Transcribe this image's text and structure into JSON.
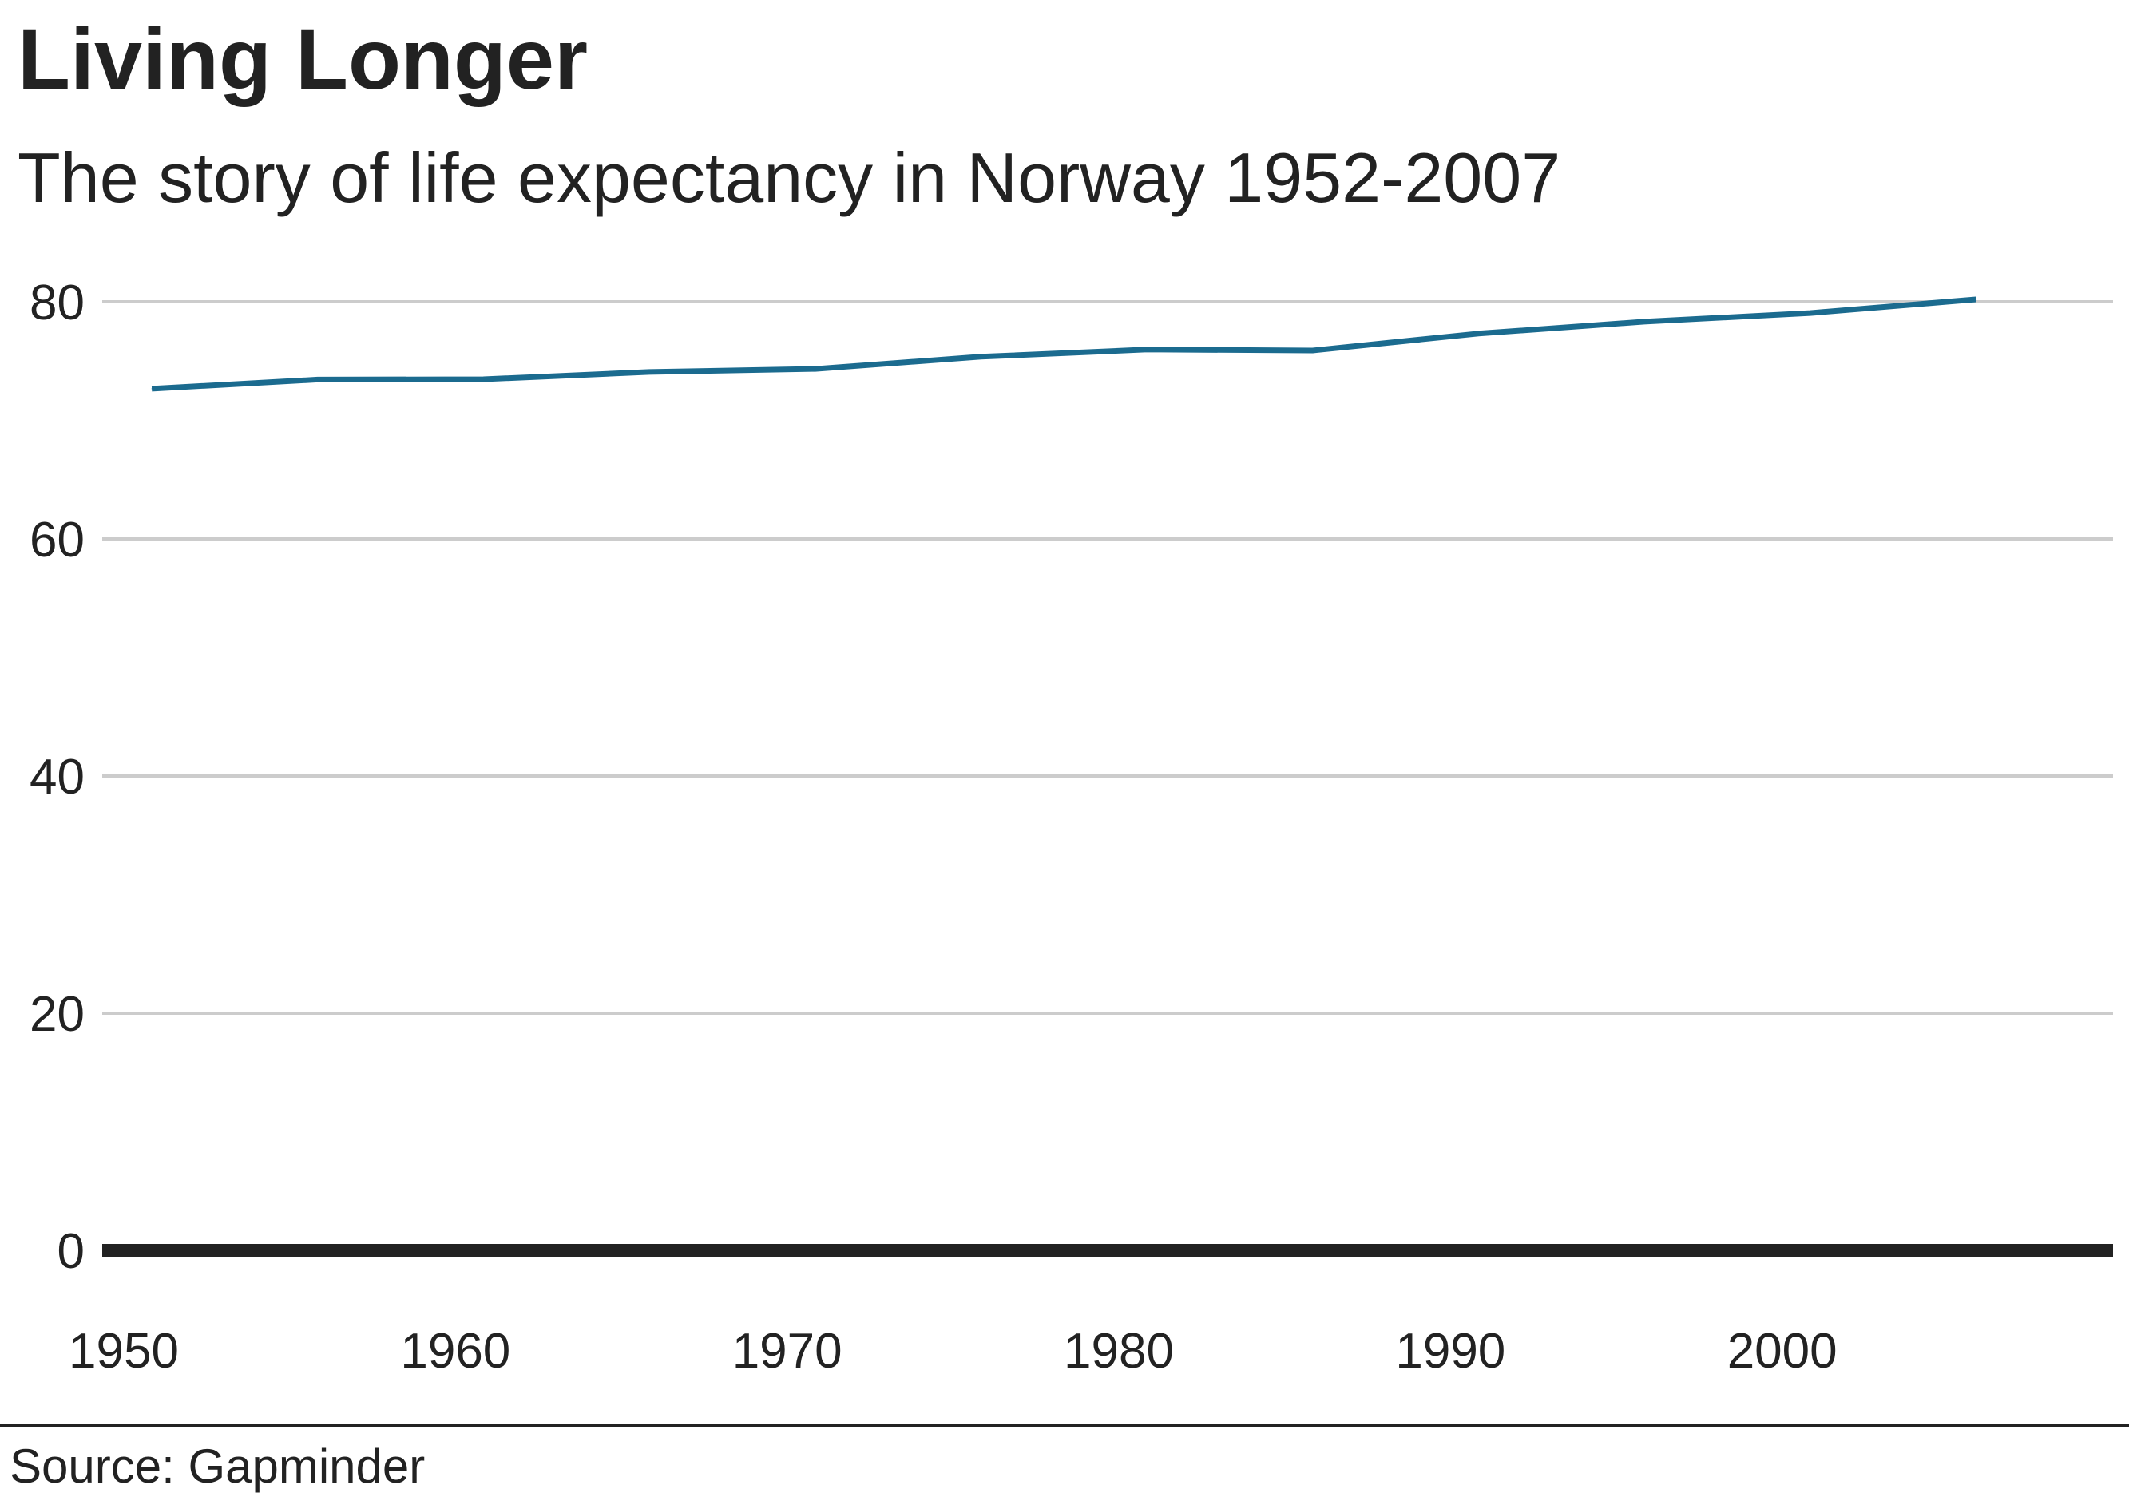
{
  "header": {
    "title": "Living Longer",
    "subtitle": "The story of life expectancy in Norway 1952-2007"
  },
  "footer": {
    "source": "Source: Gapminder"
  },
  "chart_data": {
    "type": "line",
    "title": "Living Longer",
    "subtitle": "The story of life expectancy in Norway 1952-2007",
    "xlabel": "",
    "ylabel": "",
    "x": [
      1952,
      1957,
      1962,
      1967,
      1972,
      1977,
      1982,
      1987,
      1992,
      1997,
      2002,
      2007
    ],
    "series": [
      {
        "values": [
          72.67,
          73.44,
          73.47,
          74.08,
          74.34,
          75.37,
          75.97,
          75.89,
          77.32,
          78.32,
          79.05,
          80.2
        ]
      }
    ],
    "xlim": [
      1950,
      2010
    ],
    "ylim": [
      0,
      80
    ],
    "xticks": [
      "1950",
      "1960",
      "1970",
      "1980",
      "1990",
      "2000"
    ],
    "yticks": [
      "0",
      "20",
      "40",
      "60",
      "80"
    ],
    "grid": true,
    "legend": "none",
    "colors": {
      "line": "#1b6b8f",
      "grid": "#cccccc",
      "baseline": "#222222",
      "text": "#222222"
    },
    "source": "Source: Gapminder"
  }
}
